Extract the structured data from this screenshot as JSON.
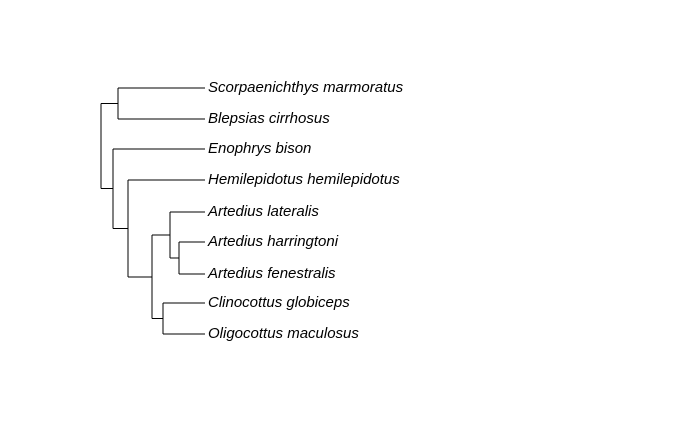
{
  "tree": {
    "type": "phylogenetic-tree",
    "line_color": "#000000",
    "text_color": "#000000",
    "taxa": [
      "Scorpaenichthys marmoratus",
      "Blepsias cirrhosus",
      "Enophrys bison",
      "Hemilepidotus hemilepidotus",
      "Artedius lateralis",
      "Artedius harringtoni",
      "Artedius fenestralis",
      "Clinocottus globiceps",
      "Oligocottus maculosus"
    ],
    "topology": "((Scorpaenichthys marmoratus,Blepsias cirrhosus),(Enophrys bison,(Hemilepidotus hemilepidotus,((Artedius lateralis,(Artedius harringtoni,Artedius fenestralis)),(Clinocottus globiceps,Oligocottus maculosus)))));"
  }
}
